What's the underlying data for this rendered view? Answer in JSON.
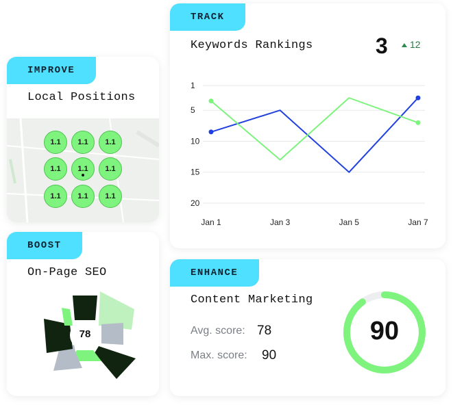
{
  "improve": {
    "tag": "IMPROVE",
    "title": "Local Positions",
    "grid": [
      "1.1",
      "1.1",
      "1.1",
      "1.1",
      "1.1",
      "1.1",
      "1.1",
      "1.1",
      "1.1"
    ]
  },
  "boost": {
    "tag": "BOOST",
    "title": "On-Page SEO",
    "score": "78"
  },
  "track": {
    "tag": "TRACK",
    "title": "Keywords Rankings",
    "rank": "3",
    "change": "12",
    "colors": {
      "green": "#7ef37e",
      "blue": "#2140e0"
    }
  },
  "chart_data": {
    "type": "line",
    "x": [
      "Jan 1",
      "Jan 3",
      "Jan 5",
      "Jan 7"
    ],
    "yticks": [
      "1",
      "5",
      "10",
      "15",
      "20"
    ],
    "ylim": [
      1,
      20
    ],
    "y_inverted": true,
    "series": [
      {
        "values": [
          8.5,
          5,
          15,
          3
        ],
        "color": "#2140e0"
      },
      {
        "values": [
          3.5,
          13,
          3,
          7
        ],
        "color": "#7ef37e"
      }
    ]
  },
  "enhance": {
    "tag": "ENHANCE",
    "title": "Content Marketing",
    "avg_label": "Avg. score:",
    "avg_value": "78",
    "max_label": "Max. score:",
    "max_value": "90",
    "gauge_value": "90",
    "gauge_fraction": 0.9
  }
}
